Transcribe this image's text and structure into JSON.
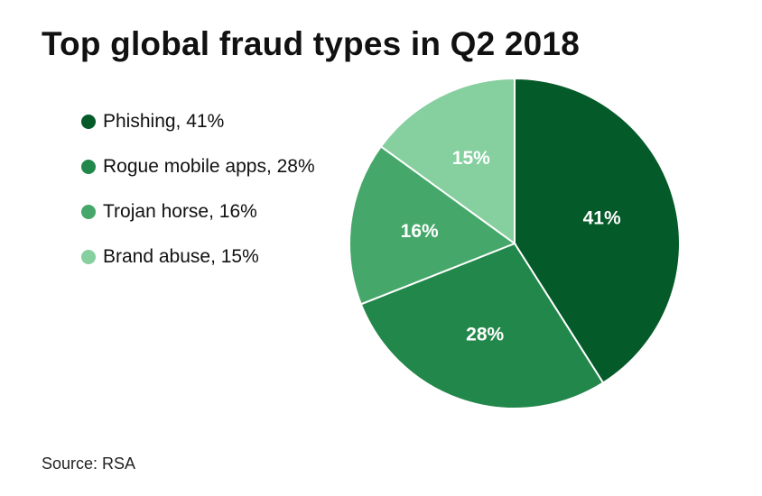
{
  "title": "Top global fraud types in Q2 2018",
  "source": "Source: RSA",
  "legend": [
    {
      "label": "Phishing, 41%",
      "color": "#045a28"
    },
    {
      "label": "Rogue mobile apps, 28%",
      "color": "#22874a"
    },
    {
      "label": "Trojan horse, 16%",
      "color": "#45a86a"
    },
    {
      "label": "Brand abuse, 15%",
      "color": "#86cf9f"
    }
  ],
  "chart_data": {
    "type": "pie",
    "title": "Top global fraud types in Q2 2018",
    "slices": [
      {
        "name": "Phishing",
        "value": 41,
        "label": "41%",
        "color": "#045a28"
      },
      {
        "name": "Rogue mobile apps",
        "value": 28,
        "label": "28%",
        "color": "#22874a"
      },
      {
        "name": "Trojan horse",
        "value": 16,
        "label": "16%",
        "color": "#45a86a"
      },
      {
        "name": "Brand abuse",
        "value": 15,
        "label": "15%",
        "color": "#86cf9f"
      }
    ],
    "start_angle": "12 o'clock",
    "direction": "clockwise",
    "legend_position": "left"
  }
}
